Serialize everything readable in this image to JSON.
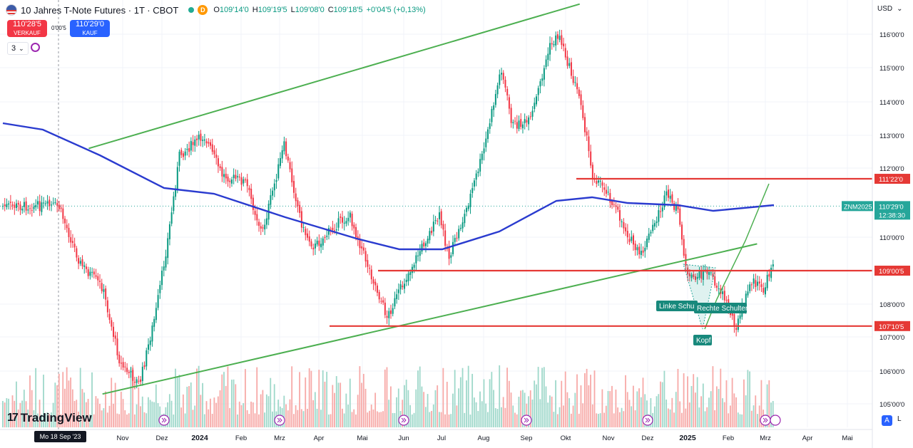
{
  "header": {
    "symbol_title": "10 Jahres T-Note Futures · 1T · CBOT",
    "badge": "D",
    "open_label": "O",
    "open": "109'14'0",
    "high_label": "H",
    "high": "109'19'5",
    "low_label": "L",
    "low": "109'08'0",
    "close_label": "C",
    "close": "109'18'5",
    "change": "+0'04'5 (+0,13%)"
  },
  "trade": {
    "sell_price": "110'28'5",
    "sell_label": "VERKAUF",
    "buy_price": "110'29'0",
    "buy_label": "KAUF",
    "spread": "0'00'5"
  },
  "indicators": {
    "count": "3"
  },
  "currency": "USD",
  "logo_text": "TradingView",
  "crosshair_date": "Mo 18 Sep '23",
  "bottom_buttons": {
    "auto": "A",
    "log": "L"
  },
  "colors": {
    "up": "#089981",
    "down": "#f23645",
    "ma": "#2a3bcf",
    "trend": "#4caf50",
    "level": "#e53935"
  },
  "chart_data": {
    "type": "candlestick",
    "price_axis": {
      "ticks": [
        "116'00'0",
        "115'00'0",
        "114'00'0",
        "113'00'0",
        "112'00'0",
        "110'00'0",
        "108'00'0",
        "107'00'0",
        "106'00'0",
        "105'00'0"
      ],
      "values": [
        116,
        115,
        114,
        113,
        112,
        110,
        108,
        107,
        106,
        105
      ],
      "scale": "log"
    },
    "time_axis": [
      "Nov",
      "Dez",
      "2024",
      "Feb",
      "Mrz",
      "Apr",
      "Mai",
      "Jun",
      "Jul",
      "Aug",
      "Sep",
      "Okt",
      "Nov",
      "Dez",
      "2025",
      "Feb",
      "Mrz",
      "Apr",
      "Mai"
    ],
    "horizontal_levels": [
      {
        "label": "111'22'0",
        "value": 111.69
      },
      {
        "label": "109'00'5",
        "value": 109.0
      },
      {
        "label": "107'10'5",
        "value": 107.33
      }
    ],
    "current_price": {
      "symbol": "ZNM2025",
      "label": "110'29'0",
      "countdown": "12:38:30",
      "value": 110.9
    },
    "pattern_labels": [
      "Linke Schulter",
      "Rechte Schulter",
      "Kopf"
    ],
    "price_path_dates": [
      "2023-09-18",
      "2023-10-04",
      "2023-10-20",
      "2023-11-02",
      "2023-11-16",
      "2023-11-28",
      "2023-12-06",
      "2023-12-15",
      "2024-01-02",
      "2024-01-15",
      "2024-02-01",
      "2024-02-13",
      "2024-02-29",
      "2024-03-14",
      "2024-03-22",
      "2024-04-08",
      "2024-04-17",
      "2024-04-26",
      "2024-05-14",
      "2024-05-29",
      "2024-06-12",
      "2024-06-21",
      "2024-06-28",
      "2024-07-09",
      "2024-07-23",
      "2024-08-05",
      "2024-08-13",
      "2024-08-26",
      "2024-09-09",
      "2024-09-16",
      "2024-09-25",
      "2024-10-02",
      "2024-10-10",
      "2024-10-20",
      "2024-11-06",
      "2024-11-14",
      "2024-12-03",
      "2024-12-11",
      "2024-12-19",
      "2025-01-02",
      "2025-01-13",
      "2025-01-23",
      "2025-02-03",
      "2025-02-12",
      "2025-02-20",
      "2025-03-03",
      "2025-03-06"
    ],
    "price_path_values": [
      110.9,
      109.2,
      108.5,
      106.2,
      105.6,
      107.8,
      109.8,
      112.4,
      113.0,
      111.8,
      111.6,
      110.1,
      112.7,
      110.2,
      109.7,
      110.4,
      110.6,
      109.6,
      107.6,
      108.9,
      110.0,
      110.6,
      109.4,
      110.6,
      112.5,
      115.0,
      113.3,
      113.4,
      115.6,
      116.0,
      114.8,
      114.0,
      111.8,
      111.4,
      110.0,
      109.4,
      111.2,
      110.8,
      108.7,
      109.0,
      108.3,
      107.3,
      108.7,
      108.4,
      109.5,
      111.7,
      110.9
    ],
    "moving_average": {
      "values": [
        113.3,
        112.6,
        111.2,
        110.3,
        110.2,
        109.9,
        109.8,
        110.8,
        110.9,
        110.9
      ]
    },
    "trendlines": [
      {
        "from": [
          "2023-10-10",
          112.6
        ],
        "to": [
          "2024-10-01",
          116.9
        ]
      },
      {
        "from": [
          "2023-10-20",
          105.3
        ],
        "to": [
          "2025-02-07",
          109.8
        ]
      }
    ],
    "volume": {
      "pattern": "daily bars",
      "colors": [
        "up",
        "down"
      ]
    }
  }
}
